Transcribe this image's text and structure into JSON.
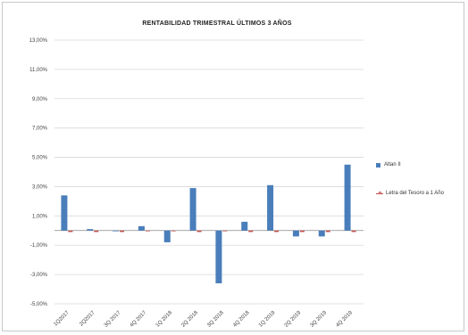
{
  "chart_data": {
    "type": "bar",
    "title": "RENTABILIDAD TRIMESTRAL ÚLTIMOS 3 AÑOS",
    "categories": [
      "1Q2017",
      "2Q2017",
      "3Q 2017",
      "4Q 2017",
      "1Q 2018",
      "2Q 2018",
      "3Q 2018",
      "4Q 2018",
      "1Q 2019",
      "2Q 2019",
      "3Q 2019",
      "4Q 2019"
    ],
    "series": [
      {
        "name": "Altan II",
        "color": "#4a7ebb",
        "values": [
          2.4,
          0.1,
          0.0,
          0.3,
          -0.8,
          2.9,
          -3.6,
          0.6,
          3.1,
          -0.4,
          -0.4,
          4.5
        ]
      },
      {
        "name": "Letra del Tesoro a 1 Año",
        "color": "#c0504d",
        "values": [
          -0.1,
          -0.1,
          -0.1,
          0.0,
          0.0,
          -0.1,
          0.0,
          -0.1,
          -0.1,
          -0.1,
          -0.1,
          -0.1
        ]
      }
    ],
    "yticks": [
      "13,00%",
      "11,00%",
      "9,00%",
      "7,00%",
      "5,00%",
      "3,00%",
      "1,00%",
      "-1,00%",
      "-3,00%",
      "-5,00%"
    ],
    "ylim": [
      -5,
      13
    ],
    "grid": true,
    "legend_position": "right"
  }
}
